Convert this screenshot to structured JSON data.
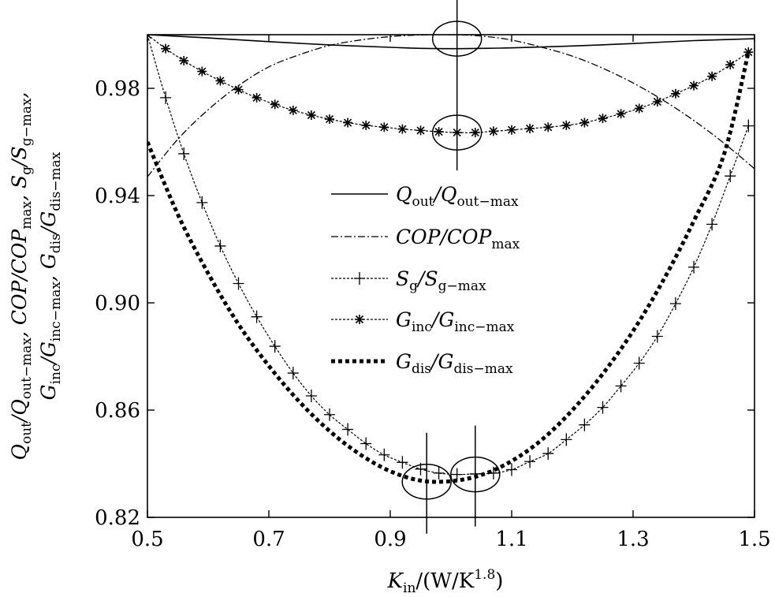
{
  "chart_data": {
    "type": "line",
    "title": "",
    "xlabel": {
      "main": "K",
      "sub": "in",
      "rest": "/(W/K",
      "sup": "1.8",
      "close": ")"
    },
    "ylabel": {
      "line1": [
        {
          "t": "Q",
          "s": "out"
        },
        {
          "t": "/Q",
          "s": "out−max"
        },
        {
          "t": ", COP/COP",
          "s": "max"
        },
        {
          "t": ", S",
          "s": "g"
        },
        {
          "t": "/S",
          "s": "g−max"
        },
        {
          "t": ",",
          "s": ""
        }
      ],
      "line2": [
        {
          "t": "G",
          "s": "inc"
        },
        {
          "t": "/G",
          "s": "inc−max"
        },
        {
          "t": ", G",
          "s": "dis"
        },
        {
          "t": "/G",
          "s": "dis−max"
        }
      ]
    },
    "xlim": [
      0.5,
      1.5
    ],
    "ylim": [
      0.82,
      1.0
    ],
    "xticks": [
      "0.5",
      "0.7",
      "0.9",
      "1.1",
      "1.3",
      "1.5"
    ],
    "yticks": [
      "0.82",
      "0.86",
      "0.90",
      "0.94",
      "0.98"
    ],
    "series": [
      {
        "name": "Qout",
        "label": {
          "a": "Q",
          "as": "out",
          "b": "/Q",
          "bs": "out−max"
        },
        "style": "solid",
        "x": [
          0.5,
          0.6,
          0.7,
          0.8,
          0.9,
          0.95,
          1.0,
          1.05,
          1.1,
          1.2,
          1.3,
          1.4,
          1.5
        ],
        "y": [
          1.0,
          0.9988,
          0.9974,
          0.9962,
          0.9953,
          0.9949,
          0.9948,
          0.9949,
          0.9951,
          0.9958,
          0.9967,
          0.9978,
          0.9985
        ]
      },
      {
        "name": "COP",
        "label": {
          "a": "COP",
          "as": "",
          "b": "/COP",
          "bs": "max"
        },
        "style": "dashdot",
        "x": [
          0.5,
          0.55,
          0.6,
          0.65,
          0.7,
          0.75,
          0.8,
          0.85,
          0.9,
          0.95,
          1.0,
          1.05,
          1.1,
          1.15,
          1.2,
          1.25,
          1.3,
          1.35,
          1.4,
          1.45,
          1.5
        ],
        "y": [
          0.947,
          0.961,
          0.972,
          0.981,
          0.988,
          0.9925,
          0.996,
          0.998,
          0.9993,
          0.9999,
          1.0,
          0.9995,
          0.998,
          0.9953,
          0.992,
          0.9875,
          0.982,
          0.9755,
          0.968,
          0.9595,
          0.95
        ]
      },
      {
        "name": "Sg",
        "label": {
          "a": "S",
          "as": "g",
          "b": "/S",
          "bs": "g−max"
        },
        "style": "plus",
        "x": [
          0.5,
          0.53,
          0.56,
          0.59,
          0.62,
          0.65,
          0.68,
          0.71,
          0.74,
          0.77,
          0.8,
          0.83,
          0.86,
          0.89,
          0.92,
          0.95,
          0.98,
          1.01,
          1.04,
          1.07,
          1.1,
          1.13,
          1.16,
          1.19,
          1.22,
          1.25,
          1.28,
          1.31,
          1.34,
          1.37,
          1.4,
          1.43,
          1.46,
          1.49
        ],
        "y": [
          1.0,
          0.9765,
          0.9556,
          0.9374,
          0.9212,
          0.9072,
          0.8948,
          0.8838,
          0.8738,
          0.8653,
          0.8583,
          0.8528,
          0.8475,
          0.8433,
          0.8405,
          0.838,
          0.8365,
          0.836,
          0.8362,
          0.8365,
          0.8378,
          0.8408,
          0.8438,
          0.849,
          0.8545,
          0.861,
          0.869,
          0.8775,
          0.8875,
          0.8997,
          0.9133,
          0.9293,
          0.9473,
          0.966
        ]
      },
      {
        "name": "Ginc",
        "label": {
          "a": "G",
          "as": "inc",
          "b": "/G",
          "bs": "inc−max"
        },
        "style": "star",
        "x": [
          0.5,
          0.53,
          0.56,
          0.59,
          0.62,
          0.65,
          0.68,
          0.71,
          0.74,
          0.77,
          0.8,
          0.83,
          0.86,
          0.89,
          0.92,
          0.95,
          0.98,
          1.01,
          1.04,
          1.07,
          1.1,
          1.13,
          1.16,
          1.19,
          1.22,
          1.25,
          1.28,
          1.31,
          1.34,
          1.37,
          1.4,
          1.43,
          1.46,
          1.49
        ],
        "y": [
          1.0,
          0.9948,
          0.9903,
          0.9863,
          0.9828,
          0.9795,
          0.9765,
          0.974,
          0.9718,
          0.97,
          0.9685,
          0.9672,
          0.9662,
          0.9655,
          0.9648,
          0.9643,
          0.9638,
          0.9635,
          0.9635,
          0.964,
          0.9645,
          0.965,
          0.9655,
          0.9662,
          0.9672,
          0.9688,
          0.9705,
          0.9725,
          0.975,
          0.978,
          0.981,
          0.9845,
          0.9888,
          0.9935
        ]
      },
      {
        "name": "Gdis",
        "label": {
          "a": "G",
          "as": "dis",
          "b": "/G",
          "bs": "dis−max"
        },
        "style": "dotted",
        "x": [
          0.5,
          0.55,
          0.6,
          0.65,
          0.7,
          0.75,
          0.8,
          0.85,
          0.9,
          0.95,
          1.0,
          1.05,
          1.1,
          1.15,
          1.2,
          1.25,
          1.3,
          1.35,
          1.4,
          1.45,
          1.49
        ],
        "y": [
          0.96,
          0.933,
          0.911,
          0.892,
          0.8765,
          0.8632,
          0.8522,
          0.8435,
          0.8372,
          0.8337,
          0.8335,
          0.8358,
          0.841,
          0.849,
          0.86,
          0.8735,
          0.8895,
          0.9085,
          0.9305,
          0.9555,
          0.9935
        ]
      }
    ],
    "annotations": {
      "vlines": [
        1.01,
        0.96,
        1.04
      ],
      "ellipses": [
        {
          "x": 1.01,
          "y": 0.9985
        },
        {
          "x": 1.01,
          "y": 0.9635
        },
        {
          "x": 0.96,
          "y": 0.8333
        },
        {
          "x": 1.04,
          "y": 0.836
        }
      ]
    }
  }
}
